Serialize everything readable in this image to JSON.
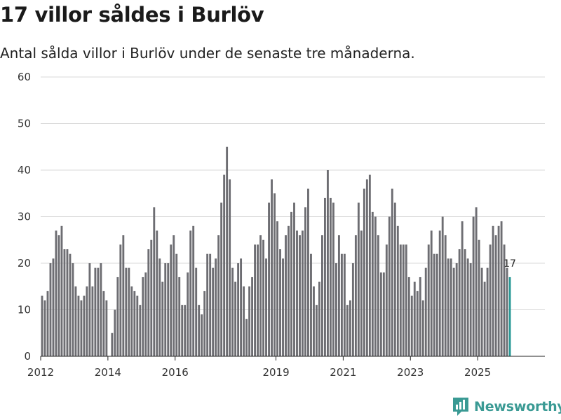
{
  "chart_data": {
    "type": "bar",
    "title": "17 villor såldes i Burlöv",
    "subtitle": "Antal sålda villor i Burlöv under de senaste tre månaderna.",
    "xlabel": "",
    "ylabel": "",
    "ylim": [
      0,
      60
    ],
    "yticks": [
      0,
      10,
      20,
      30,
      40,
      50,
      60
    ],
    "grid": true,
    "x_start": "2012-01",
    "x_end": "2026-12",
    "x_ticks": [
      {
        "date": "2012-01",
        "label": "2012"
      },
      {
        "date": "2014-01",
        "label": "2014"
      },
      {
        "date": "2016-01",
        "label": "2016"
      },
      {
        "date": "2019-01",
        "label": "2019"
      },
      {
        "date": "2021-01",
        "label": "2021"
      },
      {
        "date": "2023-01",
        "label": "2023"
      },
      {
        "date": "2025-01",
        "label": "2025"
      }
    ],
    "first_month": "2012-01",
    "values": [
      13,
      12,
      14,
      20,
      21,
      27,
      26,
      28,
      23,
      23,
      22,
      20,
      15,
      13,
      12,
      13,
      15,
      20,
      15,
      19,
      19,
      20,
      14,
      12,
      0,
      5,
      10,
      17,
      24,
      26,
      19,
      19,
      15,
      14,
      13,
      11,
      17,
      18,
      23,
      25,
      32,
      27,
      21,
      16,
      20,
      20,
      24,
      26,
      22,
      17,
      11,
      11,
      18,
      27,
      28,
      19,
      11,
      9,
      14,
      22,
      22,
      19,
      21,
      26,
      33,
      39,
      45,
      38,
      19,
      16,
      20,
      21,
      15,
      8,
      15,
      17,
      24,
      24,
      26,
      25,
      21,
      33,
      38,
      35,
      29,
      23,
      21,
      26,
      28,
      31,
      33,
      27,
      26,
      27,
      32,
      36,
      22,
      15,
      11,
      16,
      26,
      34,
      40,
      34,
      33,
      20,
      26,
      22,
      22,
      11,
      12,
      20,
      26,
      33,
      27,
      36,
      38,
      39,
      31,
      30,
      26,
      18,
      18,
      24,
      30,
      36,
      33,
      28,
      24,
      24,
      24,
      17,
      13,
      16,
      14,
      17,
      12,
      19,
      24,
      27,
      22,
      22,
      27,
      30,
      26,
      21,
      21,
      19,
      20,
      23,
      29,
      23,
      21,
      20,
      30,
      32,
      25,
      19,
      16,
      19,
      24,
      28,
      26,
      28,
      29,
      24,
      19,
      17
    ],
    "highlight_index": 167,
    "bar_color": "#6d6d72",
    "highlight_color": "#2a9a97",
    "highlight_label": "17"
  },
  "branding": {
    "logo_text": "Newsworthy",
    "logo_color": "#3a9a94"
  }
}
